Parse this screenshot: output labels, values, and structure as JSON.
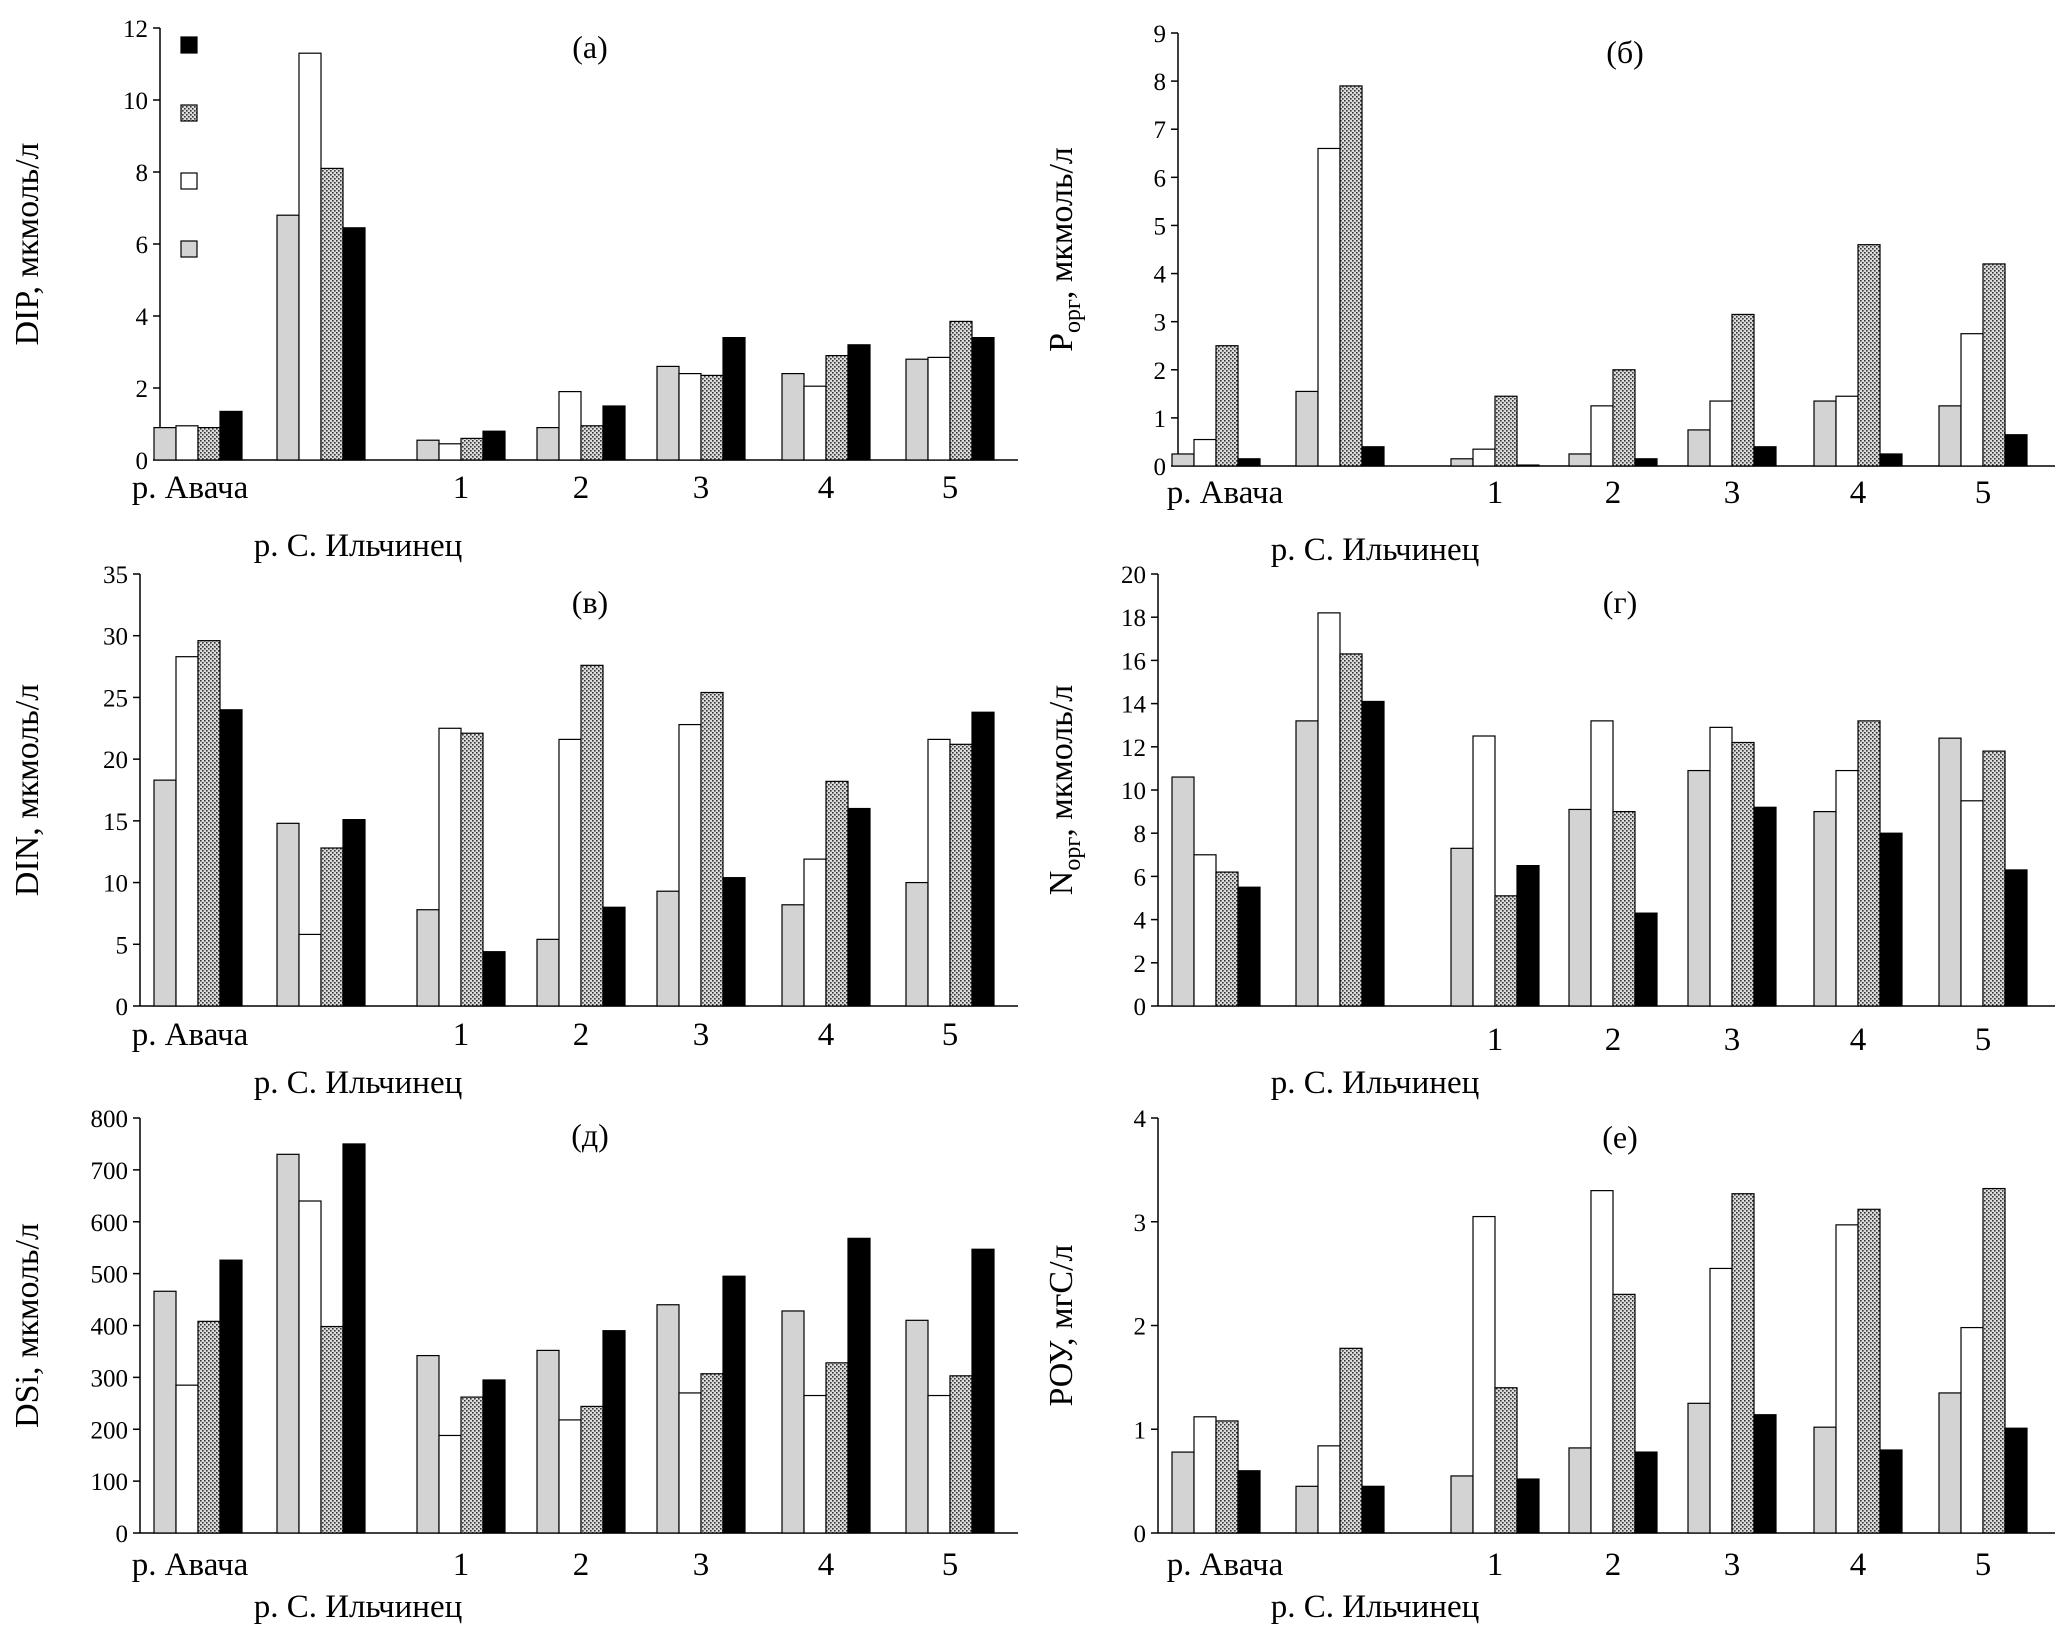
{
  "figure": {
    "colors": {
      "gray": "#d3d3d3",
      "white": "#ffffff",
      "dotted_bg": "#dcdcdc",
      "dotted_fg": "#333333",
      "black": "#000000",
      "axis": "#000000"
    },
    "series_patterns": [
      "gray",
      "white",
      "dotted",
      "black"
    ],
    "legend": {
      "panel": 0,
      "markers": [
        "black",
        "dotted",
        "white",
        "gray"
      ]
    }
  },
  "chart_data": [
    {
      "type": "bar",
      "panel_label": "(а)",
      "ylabel": "DIP, мкмоль/л",
      "ylim": [
        0,
        12
      ],
      "yticks": [
        0,
        2,
        4,
        6,
        8,
        10,
        12
      ],
      "categories": [
        "р. Авача",
        "р. С. Ильчинец",
        "1",
        "2",
        "3",
        "4",
        "5"
      ],
      "series": [
        {
          "values": [
            0.9,
            6.8,
            0.55,
            0.9,
            2.6,
            2.4,
            2.8
          ]
        },
        {
          "values": [
            0.95,
            11.3,
            0.45,
            1.9,
            2.4,
            2.05,
            2.85
          ]
        },
        {
          "values": [
            0.9,
            8.1,
            0.6,
            0.95,
            2.35,
            2.9,
            3.85
          ]
        },
        {
          "values": [
            1.35,
            6.45,
            0.8,
            1.5,
            3.4,
            3.2,
            3.4
          ]
        }
      ]
    },
    {
      "type": "bar",
      "panel_label": "(б)",
      "ylabel": "Р",
      "ylabel_sub": "орг",
      "ylabel_tail": ", мкмоль/л",
      "ylim": [
        0,
        9
      ],
      "yticks": [
        0,
        1,
        2,
        3,
        4,
        5,
        6,
        7,
        8,
        9
      ],
      "categories": [
        "р. Авача",
        "р. С. Ильчинец",
        "1",
        "2",
        "3",
        "4",
        "5"
      ],
      "series": [
        {
          "values": [
            0.25,
            1.55,
            0.15,
            0.25,
            0.75,
            1.35,
            1.25
          ]
        },
        {
          "values": [
            0.55,
            6.6,
            0.35,
            1.25,
            1.35,
            1.45,
            2.75
          ]
        },
        {
          "values": [
            2.5,
            7.9,
            1.45,
            2.0,
            3.15,
            4.6,
            4.2
          ]
        },
        {
          "values": [
            0.15,
            0.4,
            0.02,
            0.15,
            0.4,
            0.25,
            0.65
          ]
        }
      ]
    },
    {
      "type": "bar",
      "panel_label": "(в)",
      "ylabel": "DIN, мкмоль/л",
      "ylim": [
        0,
        35
      ],
      "yticks": [
        0,
        5,
        10,
        15,
        20,
        25,
        30,
        35
      ],
      "categories": [
        "р. Авача",
        "р. С. Ильчинец",
        "1",
        "2",
        "3",
        "4",
        "5"
      ],
      "series": [
        {
          "values": [
            18.3,
            14.8,
            7.8,
            5.4,
            9.3,
            8.2,
            10.0
          ]
        },
        {
          "values": [
            28.3,
            5.8,
            22.5,
            21.6,
            22.8,
            11.9,
            21.6
          ]
        },
        {
          "values": [
            29.6,
            12.8,
            22.1,
            27.6,
            25.4,
            18.2,
            21.2
          ]
        },
        {
          "values": [
            24.0,
            15.1,
            4.4,
            8.0,
            10.4,
            16.0,
            23.8
          ]
        }
      ]
    },
    {
      "type": "bar",
      "panel_label": "(г)",
      "ylabel": "N",
      "ylabel_sub": "орг",
      "ylabel_tail": ", мкмоль/л",
      "ylim": [
        0,
        20
      ],
      "yticks": [
        0,
        2,
        4,
        6,
        8,
        10,
        12,
        14,
        16,
        18,
        20
      ],
      "categories": [
        "",
        "р. С. Ильчинец",
        "1",
        "2",
        "3",
        "4",
        "5"
      ],
      "series": [
        {
          "values": [
            10.6,
            13.2,
            7.3,
            9.1,
            10.9,
            9.0,
            12.4
          ]
        },
        {
          "values": [
            7.0,
            18.2,
            12.5,
            13.2,
            12.9,
            10.9,
            9.5
          ]
        },
        {
          "values": [
            6.2,
            16.3,
            5.1,
            9.0,
            12.2,
            13.2,
            11.8
          ]
        },
        {
          "values": [
            5.5,
            14.1,
            6.5,
            4.3,
            9.2,
            8.0,
            6.3
          ]
        }
      ]
    },
    {
      "type": "bar",
      "panel_label": "(д)",
      "ylabel": "DSi, мкмоль/л",
      "ylim": [
        0,
        800
      ],
      "yticks": [
        0,
        100,
        200,
        300,
        400,
        500,
        600,
        700,
        800
      ],
      "categories": [
        "р. Авача",
        "р. С. Ильчинец",
        "1",
        "2",
        "3",
        "4",
        "5"
      ],
      "series": [
        {
          "values": [
            466,
            730,
            342,
            352,
            440,
            428,
            410
          ]
        },
        {
          "values": [
            285,
            640,
            188,
            218,
            270,
            265,
            265
          ]
        },
        {
          "values": [
            408,
            398,
            262,
            244,
            307,
            328,
            303
          ]
        },
        {
          "values": [
            526,
            750,
            295,
            390,
            495,
            568,
            547
          ]
        }
      ]
    },
    {
      "type": "bar",
      "panel_label": "(е)",
      "ylabel": "РОУ, мгС/л",
      "ylim": [
        0,
        4
      ],
      "yticks": [
        0,
        1,
        2,
        3,
        4
      ],
      "categories": [
        "р. Авача",
        "р. С. Ильчинец",
        "1",
        "2",
        "3",
        "4",
        "5"
      ],
      "series": [
        {
          "values": [
            0.78,
            0.45,
            0.55,
            0.82,
            1.25,
            1.02,
            1.35
          ]
        },
        {
          "values": [
            1.12,
            0.84,
            3.05,
            3.3,
            2.55,
            2.97,
            1.98
          ]
        },
        {
          "values": [
            1.08,
            1.78,
            1.4,
            2.3,
            3.27,
            3.12,
            3.32
          ]
        },
        {
          "values": [
            0.6,
            0.45,
            0.52,
            0.78,
            1.14,
            0.8,
            1.01
          ]
        }
      ]
    }
  ]
}
